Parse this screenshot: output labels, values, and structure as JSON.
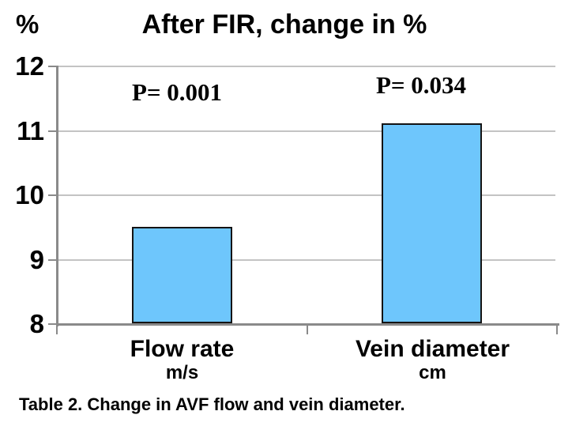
{
  "chart_data": {
    "type": "bar",
    "title": "After FIR, change in %",
    "ylabel": "%",
    "xlabel": "",
    "categories": [
      "Flow rate",
      "Vein diameter"
    ],
    "category_units": [
      "m/s",
      "cm"
    ],
    "values": [
      9.5,
      11.1
    ],
    "annotations": [
      "P= 0.001",
      "P= 0.034"
    ],
    "ylim": [
      8,
      12
    ],
    "yticks": [
      8,
      9,
      10,
      11,
      12
    ],
    "grid": true,
    "legend_position": "none",
    "bar_color": "#6EC6FC",
    "bar_border_color": "#141414",
    "gridline_color": "#C3C3C3",
    "axis_color": "#8A8A8A"
  },
  "caption": "Table 2. Change in AVF flow and vein diameter."
}
